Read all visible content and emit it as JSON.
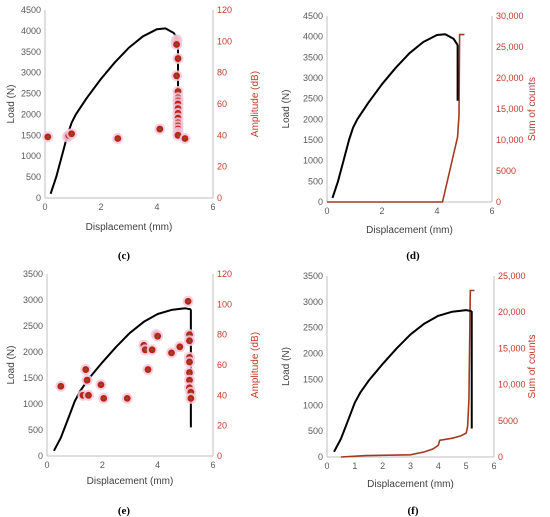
{
  "figure": {
    "panels": [
      {
        "id": "c",
        "label": "(c)"
      },
      {
        "id": "d",
        "label": "(d)"
      },
      {
        "id": "e",
        "label": "(e)"
      },
      {
        "id": "f",
        "label": "(f)"
      }
    ]
  },
  "colors": {
    "load_curve": "#000000",
    "secondary": "#c0392b",
    "hit_fill": "#c0201a",
    "hit_center": "#7a5a1a",
    "hit_halo": "#f2c9dc",
    "cumulative": "#a23a1e",
    "axis": "#bfbfbf",
    "tick_text": "#595959"
  },
  "chart_data": [
    {
      "panel": "c",
      "type": "line+scatter",
      "xlabel": "Displacement (mm)",
      "ylabel": "Load (N)",
      "y2label": "Amplitude (dB)",
      "xlim": [
        0,
        6
      ],
      "ylim": [
        0,
        4500
      ],
      "y2lim": [
        0,
        120
      ],
      "xticks": [
        "0",
        "2",
        "4",
        "6"
      ],
      "yticks": [
        "0",
        "500",
        "1000",
        "1500",
        "2000",
        "2500",
        "3000",
        "3500",
        "4000",
        "4500"
      ],
      "y2ticks": [
        "0",
        "20",
        "40",
        "60",
        "80",
        "100",
        "120"
      ],
      "load": {
        "x": [
          0.2,
          0.4,
          0.6,
          0.8,
          0.95,
          1.1,
          1.5,
          2.0,
          2.5,
          3.0,
          3.5,
          4.0,
          4.3,
          4.6,
          4.75
        ],
        "y": [
          100,
          500,
          1000,
          1500,
          1800,
          2000,
          2400,
          2850,
          3250,
          3600,
          3870,
          4040,
          4060,
          3950,
          3800
        ]
      },
      "drop": {
        "x": [
          4.75,
          4.75
        ],
        "y": [
          3800,
          1800
        ]
      },
      "amplitude": {
        "x": [
          0.1,
          0.8,
          0.85,
          0.95,
          2.6,
          4.1,
          4.7,
          4.7,
          4.7,
          4.7,
          4.7,
          4.75,
          4.75,
          4.75,
          4.75,
          4.75,
          4.75,
          4.75,
          4.75,
          4.75,
          4.75,
          4.75,
          4.75,
          4.75,
          4.75,
          5.0
        ],
        "y": [
          39,
          39,
          40,
          41,
          38,
          44,
          101,
          100,
          99,
          98,
          78,
          89,
          68,
          64,
          62,
          60,
          57,
          54,
          51,
          48,
          46,
          44,
          42,
          41,
          40,
          38
        ]
      }
    },
    {
      "panel": "d",
      "type": "line",
      "xlabel": "Displacement (mm)",
      "ylabel": "Load (N)",
      "y2label": "Sum of counts",
      "xlim": [
        0,
        6
      ],
      "ylim": [
        0,
        4500
      ],
      "y2lim": [
        0,
        30000
      ],
      "xticks": [
        "0",
        "2",
        "4",
        "6"
      ],
      "yticks": [
        "0",
        "500",
        "1000",
        "1500",
        "2000",
        "2500",
        "3000",
        "3500",
        "4000",
        "4500"
      ],
      "y2ticks": [
        "0",
        "5000",
        "10,000",
        "15,000",
        "20,000",
        "25,000",
        "30,000"
      ],
      "load": {
        "x": [
          0.2,
          0.4,
          0.6,
          0.8,
          0.95,
          1.1,
          1.5,
          2.0,
          2.5,
          3.0,
          3.5,
          4.0,
          4.3,
          4.6,
          4.75
        ],
        "y": [
          100,
          500,
          1000,
          1500,
          1800,
          2000,
          2400,
          2850,
          3250,
          3600,
          3870,
          4040,
          4060,
          3950,
          3800
        ]
      },
      "drop": {
        "x": [
          4.75,
          4.75
        ],
        "y": [
          3800,
          2450
        ]
      },
      "counts": {
        "x": [
          0,
          4.2,
          4.75,
          4.8,
          4.82,
          4.85,
          4.9,
          5.0
        ],
        "y": [
          0,
          0,
          10500,
          14000,
          27000,
          27000,
          27000,
          27000
        ]
      }
    },
    {
      "panel": "e",
      "type": "line+scatter",
      "xlabel": "Displacement (mm)",
      "ylabel": "Load (N)",
      "y2label": "Amplitude (dB)",
      "xlim": [
        0,
        6
      ],
      "ylim": [
        0,
        3500
      ],
      "y2lim": [
        0,
        120
      ],
      "xticks": [
        "0",
        "2",
        "4",
        "6"
      ],
      "yticks": [
        "0",
        "500",
        "1000",
        "1500",
        "2000",
        "2500",
        "3000",
        "3500"
      ],
      "y2ticks": [
        "0",
        "20",
        "40",
        "60",
        "80",
        "100",
        "120"
      ],
      "load": {
        "x": [
          0.25,
          0.5,
          0.75,
          1.0,
          1.2,
          1.5,
          2.0,
          2.5,
          3.0,
          3.5,
          4.0,
          4.5,
          5.0,
          5.2
        ],
        "y": [
          100,
          350,
          700,
          1050,
          1250,
          1480,
          1800,
          2100,
          2370,
          2580,
          2730,
          2810,
          2840,
          2820
        ]
      },
      "drop": {
        "x": [
          5.2,
          5.2
        ],
        "y": [
          2820,
          550
        ]
      },
      "amplitude": {
        "x": [
          0.5,
          1.3,
          1.4,
          1.45,
          1.5,
          1.95,
          2.05,
          2.9,
          3.5,
          3.55,
          3.65,
          3.8,
          3.95,
          4.0,
          4.5,
          4.8,
          5.1,
          5.15,
          5.15,
          5.15,
          5.15,
          5.15,
          5.15,
          5.15,
          5.2,
          5.2
        ],
        "y": [
          46,
          40,
          57,
          50,
          40,
          47,
          38,
          38,
          73,
          70,
          57,
          70,
          80,
          79,
          68,
          72,
          102,
          80,
          76,
          65,
          62,
          55,
          50,
          45,
          42,
          38
        ]
      }
    },
    {
      "panel": "f",
      "type": "line",
      "xlabel": "Displacement (mm)",
      "ylabel": "Load (N)",
      "y2label": "Sum of counts",
      "xlim": [
        0,
        6
      ],
      "ylim": [
        0,
        3500
      ],
      "y2lim": [
        0,
        25000
      ],
      "xticks": [
        "0",
        "1",
        "2",
        "3",
        "4",
        "5",
        "6"
      ],
      "yticks": [
        "0",
        "500",
        "1000",
        "1500",
        "2000",
        "2500",
        "3000",
        "3500"
      ],
      "y2ticks": [
        "0",
        "5000",
        "10,000",
        "15,000",
        "20,000",
        "25,000"
      ],
      "load": {
        "x": [
          0.25,
          0.5,
          0.75,
          1.0,
          1.2,
          1.5,
          2.0,
          2.5,
          3.0,
          3.5,
          4.0,
          4.5,
          5.0,
          5.2
        ],
        "y": [
          100,
          350,
          700,
          1050,
          1250,
          1480,
          1800,
          2100,
          2370,
          2580,
          2730,
          2810,
          2840,
          2820
        ]
      },
      "drop": {
        "x": [
          5.2,
          5.2
        ],
        "y": [
          2820,
          550
        ]
      },
      "counts": {
        "x": [
          0.5,
          1.4,
          3.0,
          3.5,
          3.8,
          4.0,
          4.05,
          4.5,
          4.8,
          5.0,
          5.05,
          5.1,
          5.15,
          5.2,
          5.3
        ],
        "y": [
          0,
          200,
          300,
          700,
          1100,
          1600,
          2300,
          2600,
          2900,
          3300,
          4200,
          7800,
          23000,
          23000,
          23000
        ]
      }
    }
  ]
}
